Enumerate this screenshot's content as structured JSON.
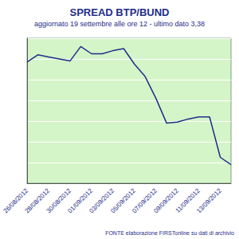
{
  "chart_data": {
    "type": "line",
    "title": "SPREAD BTP/BUND",
    "subtitle": "aggiornato 19 settembre alle ore 12 - ultimo dato 3,38",
    "annotations": [
      "FONTE elaborazione FIRSTonline su dati di archivio"
    ],
    "categories": [
      "26/08/2012",
      null,
      "28/08/2012",
      null,
      "30/08/2012",
      null,
      "01/09/2012",
      null,
      "03/09/2012",
      null,
      "05/09/2012",
      null,
      "07/09/2012",
      null,
      "09/09/2012",
      null,
      "11/09/2012",
      null,
      "13/09/2012",
      null
    ],
    "values": [
      4.37,
      4.44,
      4.42,
      4.4,
      4.38,
      4.52,
      4.45,
      4.45,
      4.48,
      4.5,
      4.35,
      4.23,
      4.02,
      3.78,
      3.79,
      3.82,
      3.84,
      3.84,
      3.45,
      3.38
    ],
    "color": "#1f2d8a",
    "ylim": [
      3.2,
      4.6
    ],
    "yticks": [
      3.2,
      3.4,
      3.6,
      3.8,
      4.0,
      4.2,
      4.4,
      4.6
    ],
    "grid": true,
    "tick_labels": "x"
  }
}
